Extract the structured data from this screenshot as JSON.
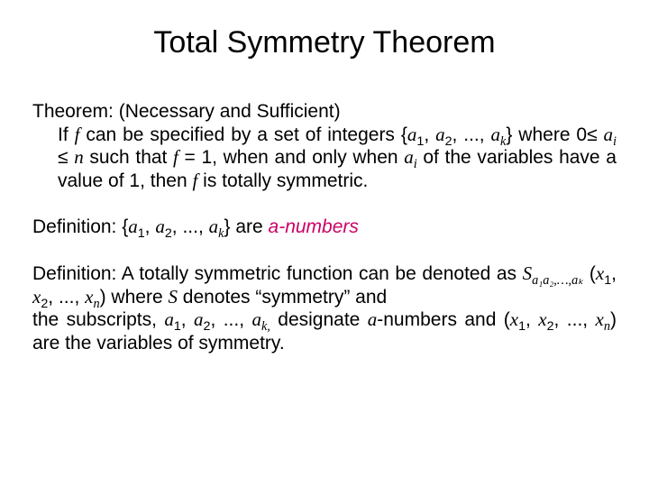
{
  "title": "Total Symmetry Theorem",
  "theorem": {
    "label": "Theorem:",
    "subtitle": " (Necessary and Sufficient)",
    "l1a": "If ",
    "f": "f",
    "l1b": " can be specified by a set of integers ",
    "a": "a",
    "s1": "1",
    "s2": "2",
    "sk": "k",
    "si": "i",
    "dots": "...",
    "l2a": " where ",
    "zero": "0",
    "le": "≤ ",
    "n": "n",
    "l2b": " such that ",
    "eq1": " = 1,",
    "l2c": " when and only when ",
    "l3a": " of the variables have a value of ",
    "one": "1",
    "l3b": ", then ",
    "l3c": " is totally symmetric."
  },
  "def1": {
    "label": "Definition: ",
    "are": " are ",
    "anumbers": "a-numbers"
  },
  "def2": {
    "label": "Definition: ",
    "l1": " A totally symmetric function can be denoted as ",
    "S": "S",
    "subS": "a₁a₂,…,aₖ",
    "x": "x",
    "sn": "n",
    "skc": "k,",
    "l2": " where ",
    "l3": " denotes “symmetry” and",
    "l4": " the subscripts, ",
    "l5": " designate ",
    "a_word": "a",
    "l5b": "-numbers and ",
    "l6": " are the variables of symmetry."
  }
}
